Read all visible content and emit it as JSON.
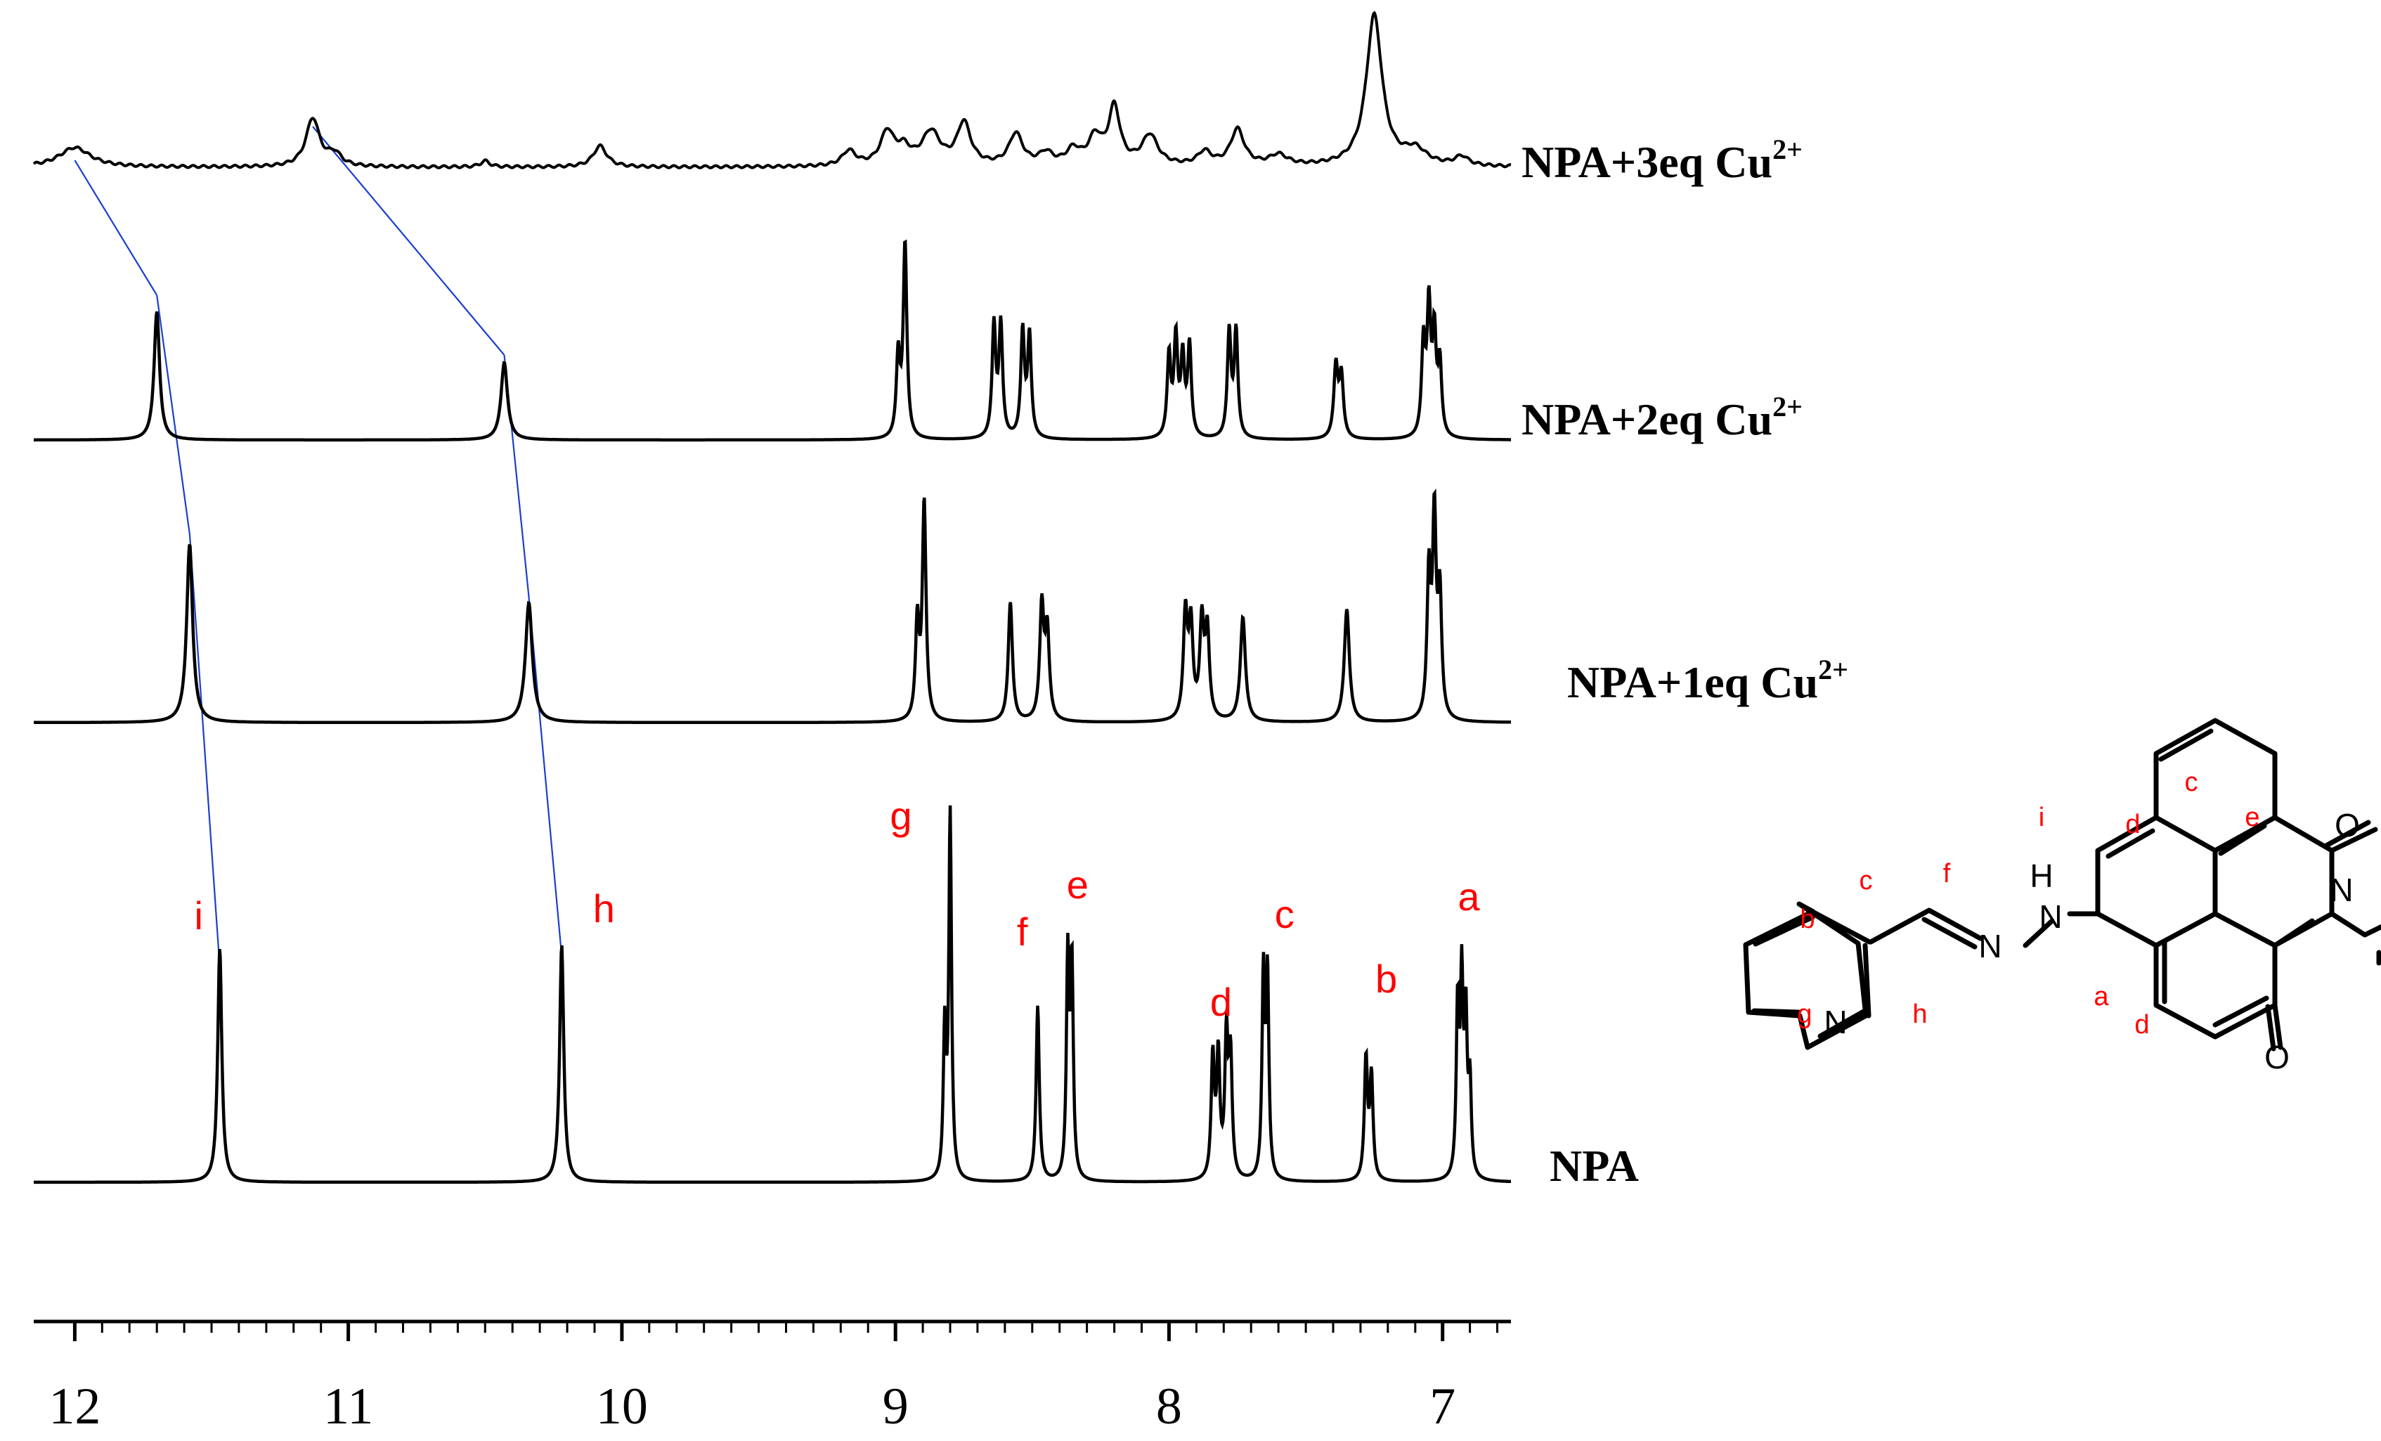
{
  "chart_data": {
    "type": "line",
    "title": "",
    "xlabel": "",
    "ylabel": "",
    "x_axis": {
      "reversed": true,
      "range": [
        12.15,
        6.75
      ],
      "tick_labels": [
        "12",
        "11",
        "10",
        "9",
        "8",
        "7"
      ],
      "tick_values": [
        12,
        11,
        10,
        9,
        8,
        7
      ]
    },
    "series": [
      {
        "name": "NPA+3eq Cu2+",
        "label_main": "NPA+3eq Cu",
        "label_sup": "2+",
        "kind": "broad",
        "peaks": [
          {
            "x": 12.0,
            "h": 0.13,
            "w": 0.07
          },
          {
            "x": 11.13,
            "h": 0.32,
            "w": 0.03
          },
          {
            "x": 11.05,
            "h": 0.08,
            "w": 0.03
          },
          {
            "x": 10.5,
            "h": 0.04,
            "w": 0.02
          },
          {
            "x": 10.08,
            "h": 0.14,
            "w": 0.03
          },
          {
            "x": 9.17,
            "h": 0.1,
            "w": 0.03
          },
          {
            "x": 9.03,
            "h": 0.22,
            "w": 0.03
          },
          {
            "x": 8.97,
            "h": 0.1,
            "w": 0.03
          },
          {
            "x": 8.87,
            "h": 0.22,
            "w": 0.04
          },
          {
            "x": 8.75,
            "h": 0.28,
            "w": 0.03
          },
          {
            "x": 8.56,
            "h": 0.21,
            "w": 0.03
          },
          {
            "x": 8.45,
            "h": 0.08,
            "w": 0.03
          },
          {
            "x": 8.35,
            "h": 0.1,
            "w": 0.03
          },
          {
            "x": 8.27,
            "h": 0.18,
            "w": 0.03
          },
          {
            "x": 8.2,
            "h": 0.38,
            "w": 0.025
          },
          {
            "x": 8.07,
            "h": 0.2,
            "w": 0.035
          },
          {
            "x": 7.87,
            "h": 0.09,
            "w": 0.03
          },
          {
            "x": 7.75,
            "h": 0.24,
            "w": 0.03
          },
          {
            "x": 7.6,
            "h": 0.07,
            "w": 0.04
          },
          {
            "x": 7.25,
            "h": 1.0,
            "w": 0.035
          },
          {
            "x": 7.1,
            "h": 0.1,
            "w": 0.05
          },
          {
            "x": 6.93,
            "h": 0.06,
            "w": 0.03
          }
        ]
      },
      {
        "name": "NPA+2eq Cu2+",
        "label_main": "NPA+2eq Cu",
        "label_sup": "2+",
        "kind": "sharp",
        "peaks": [
          {
            "x": 11.7,
            "h": 0.63,
            "w": 0.012
          },
          {
            "x": 10.43,
            "h": 0.38,
            "w": 0.014
          },
          {
            "x": 8.99,
            "h": 0.4,
            "w": 0.008
          },
          {
            "x": 8.965,
            "h": 0.95,
            "w": 0.008
          },
          {
            "x": 8.64,
            "h": 0.55,
            "w": 0.008
          },
          {
            "x": 8.615,
            "h": 0.55,
            "w": 0.008
          },
          {
            "x": 8.535,
            "h": 0.52,
            "w": 0.008
          },
          {
            "x": 8.51,
            "h": 0.5,
            "w": 0.008
          },
          {
            "x": 8.0,
            "h": 0.4,
            "w": 0.008
          },
          {
            "x": 7.975,
            "h": 0.48,
            "w": 0.008
          },
          {
            "x": 7.95,
            "h": 0.38,
            "w": 0.008
          },
          {
            "x": 7.925,
            "h": 0.45,
            "w": 0.008
          },
          {
            "x": 7.78,
            "h": 0.52,
            "w": 0.008
          },
          {
            "x": 7.755,
            "h": 0.52,
            "w": 0.008
          },
          {
            "x": 7.39,
            "h": 0.35,
            "w": 0.009
          },
          {
            "x": 7.37,
            "h": 0.3,
            "w": 0.009
          },
          {
            "x": 7.07,
            "h": 0.45,
            "w": 0.008
          },
          {
            "x": 7.05,
            "h": 0.62,
            "w": 0.008
          },
          {
            "x": 7.03,
            "h": 0.48,
            "w": 0.008
          },
          {
            "x": 7.01,
            "h": 0.35,
            "w": 0.008
          }
        ]
      },
      {
        "name": "NPA+1eq Cu2+",
        "label_main": "NPA+1eq Cu",
        "label_sup": "2+",
        "kind": "sharp",
        "peaks": [
          {
            "x": 11.58,
            "h": 0.82,
            "w": 0.013
          },
          {
            "x": 10.34,
            "h": 0.55,
            "w": 0.015
          },
          {
            "x": 8.92,
            "h": 0.45,
            "w": 0.008
          },
          {
            "x": 8.895,
            "h": 1.0,
            "w": 0.008
          },
          {
            "x": 8.58,
            "h": 0.55,
            "w": 0.009
          },
          {
            "x": 8.465,
            "h": 0.52,
            "w": 0.009
          },
          {
            "x": 8.445,
            "h": 0.4,
            "w": 0.009
          },
          {
            "x": 7.94,
            "h": 0.48,
            "w": 0.009
          },
          {
            "x": 7.92,
            "h": 0.42,
            "w": 0.009
          },
          {
            "x": 7.88,
            "h": 0.44,
            "w": 0.009
          },
          {
            "x": 7.86,
            "h": 0.4,
            "w": 0.009
          },
          {
            "x": 7.73,
            "h": 0.48,
            "w": 0.011
          },
          {
            "x": 7.35,
            "h": 0.52,
            "w": 0.011
          },
          {
            "x": 7.05,
            "h": 0.65,
            "w": 0.008
          },
          {
            "x": 7.03,
            "h": 0.9,
            "w": 0.008
          },
          {
            "x": 7.01,
            "h": 0.55,
            "w": 0.008
          }
        ]
      },
      {
        "name": "NPA",
        "label_main": "NPA",
        "label_sup": "",
        "kind": "sharp",
        "peaks": [
          {
            "x": 11.47,
            "h": 0.64,
            "w": 0.009
          },
          {
            "x": 10.22,
            "h": 0.65,
            "w": 0.009
          },
          {
            "x": 8.82,
            "h": 0.4,
            "w": 0.006
          },
          {
            "x": 8.8,
            "h": 1.0,
            "w": 0.006
          },
          {
            "x": 8.48,
            "h": 0.48,
            "w": 0.007
          },
          {
            "x": 8.37,
            "h": 0.6,
            "w": 0.006
          },
          {
            "x": 8.355,
            "h": 0.58,
            "w": 0.006
          },
          {
            "x": 7.84,
            "h": 0.33,
            "w": 0.007
          },
          {
            "x": 7.82,
            "h": 0.33,
            "w": 0.007
          },
          {
            "x": 7.79,
            "h": 0.38,
            "w": 0.007
          },
          {
            "x": 7.775,
            "h": 0.32,
            "w": 0.007
          },
          {
            "x": 7.655,
            "h": 0.55,
            "w": 0.006
          },
          {
            "x": 7.64,
            "h": 0.55,
            "w": 0.006
          },
          {
            "x": 7.28,
            "h": 0.33,
            "w": 0.007
          },
          {
            "x": 7.26,
            "h": 0.28,
            "w": 0.007
          },
          {
            "x": 6.945,
            "h": 0.46,
            "w": 0.006
          },
          {
            "x": 6.93,
            "h": 0.52,
            "w": 0.006
          },
          {
            "x": 6.915,
            "h": 0.42,
            "w": 0.006
          },
          {
            "x": 6.9,
            "h": 0.25,
            "w": 0.006
          }
        ]
      }
    ],
    "peak_assignments": [
      {
        "label": "i",
        "x": 11.47
      },
      {
        "label": "h",
        "x": 10.22
      },
      {
        "label": "g",
        "x": 8.8
      },
      {
        "label": "f",
        "x": 8.48
      },
      {
        "label": "e",
        "x": 8.36
      },
      {
        "label": "d",
        "x": 7.81
      },
      {
        "label": "c",
        "x": 7.65
      },
      {
        "label": "b",
        "x": 7.27
      },
      {
        "label": "a",
        "x": 6.93
      }
    ],
    "tracking_lines": [
      {
        "label": "i",
        "points": [
          12.0,
          11.7,
          11.58,
          11.47
        ]
      },
      {
        "label": "h",
        "points": [
          11.13,
          10.43,
          10.34,
          10.22
        ]
      }
    ]
  },
  "structure": {
    "atoms": {
      "N_pyridine": "N",
      "N_imine": "N",
      "N_hydrazine": "N",
      "H": "H",
      "N_imide": "N",
      "O_top": "O",
      "O_bottom": "O"
    },
    "proton_labels": [
      "a",
      "b",
      "c",
      "d",
      "d",
      "c",
      "e",
      "f",
      "g",
      "h",
      "i"
    ]
  },
  "colors": {
    "spectrum": "#000000",
    "assignment": "#ff0000",
    "tracking": "#1a3fd0"
  }
}
